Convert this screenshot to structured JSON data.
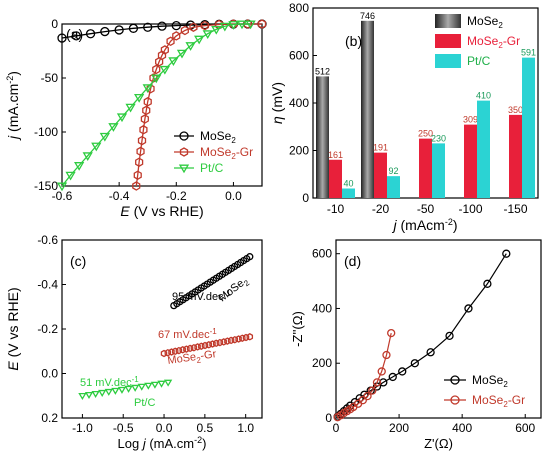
{
  "colors": {
    "black": "#000000",
    "red": "#c0392b",
    "green": "#2ecc40",
    "red_bar": "#e8203a",
    "cyan_bar": "#2bd3d3"
  },
  "chart_data": [
    {
      "type": "line",
      "panel": "(a)",
      "xlabel_main": "E",
      "xlabel_rest": " (V vs RHE)",
      "ylabel_main": "j",
      "ylabel_rest": " (mA.cm",
      "ylabel_sup": "-2",
      "ylabel_end": ")",
      "xlim": [
        -0.6,
        0.1
      ],
      "ylim": [
        -150,
        0
      ],
      "xticks": [
        -0.6,
        -0.4,
        -0.2,
        0.0
      ],
      "xtick_labels": [
        "-0.6",
        "-0.4",
        "-0.2",
        "0.0"
      ],
      "yticks": [
        -150,
        -100,
        -50,
        0
      ],
      "ytick_labels": [
        "-150",
        "-100",
        "-50",
        "0"
      ],
      "legend": "bottom-right",
      "series": [
        {
          "name_main": "MoSe",
          "name_sub": "2",
          "name_rest": "",
          "color": "#000000",
          "marker": "circle",
          "x": [
            -0.6,
            -0.55,
            -0.5,
            -0.45,
            -0.4,
            -0.35,
            -0.3,
            -0.25,
            -0.2,
            -0.15,
            -0.1,
            -0.05,
            0.0,
            0.05,
            0.1
          ],
          "y": [
            -13,
            -11,
            -9,
            -7,
            -5.5,
            -4,
            -3,
            -2,
            -1.5,
            -1,
            -0.6,
            -0.3,
            -0.1,
            0,
            0
          ]
        },
        {
          "name_main": "MoSe",
          "name_sub": "2",
          "name_rest": "-Gr",
          "color": "#c0392b",
          "marker": "hexagon",
          "x": [
            -0.34,
            -0.335,
            -0.33,
            -0.325,
            -0.32,
            -0.315,
            -0.31,
            -0.305,
            -0.3,
            -0.29,
            -0.28,
            -0.27,
            -0.26,
            -0.25,
            -0.24,
            -0.22,
            -0.2,
            -0.17,
            -0.14,
            -0.1,
            -0.05,
            0.0,
            0.05,
            0.1
          ],
          "y": [
            -150,
            -140,
            -128,
            -118,
            -108,
            -98,
            -88,
            -80,
            -72,
            -60,
            -50,
            -42,
            -35,
            -29,
            -24,
            -16,
            -11,
            -6,
            -3,
            -1.5,
            -0.5,
            0,
            0,
            0
          ]
        },
        {
          "name_main": "Pt/C",
          "name_sub": "",
          "name_rest": "",
          "color": "#2ecc40",
          "marker": "triangle-down",
          "x": [
            -0.6,
            -0.57,
            -0.54,
            -0.51,
            -0.48,
            -0.45,
            -0.42,
            -0.39,
            -0.36,
            -0.33,
            -0.3,
            -0.27,
            -0.24,
            -0.21,
            -0.18,
            -0.15,
            -0.12,
            -0.09,
            -0.06,
            -0.03,
            0.0,
            0.03,
            0.06
          ],
          "y": [
            -150,
            -140,
            -131,
            -122,
            -113,
            -104,
            -95,
            -86,
            -77,
            -68,
            -59,
            -50,
            -42,
            -34,
            -27,
            -20,
            -14,
            -9,
            -5,
            -2,
            -0.5,
            0,
            0
          ]
        }
      ]
    },
    {
      "type": "bar",
      "panel": "(b)",
      "xlabel_main": "j",
      "xlabel_rest": " (mAcm",
      "xlabel_sup": "-2",
      "xlabel_end": ")",
      "ylabel_main": "η",
      "ylabel_rest": " (mV)",
      "categories": [
        "-10",
        "-20",
        "-50",
        "-100",
        "-150"
      ],
      "ylim": [
        0,
        800
      ],
      "yticks": [
        0,
        200,
        400,
        600,
        800
      ],
      "ytick_labels": [
        "0",
        "200",
        "400",
        "600",
        "800"
      ],
      "legend": "top-right",
      "series": [
        {
          "name_main": "MoSe",
          "name_sub": "2",
          "name_rest": "",
          "color": "#555555",
          "values": [
            512,
            746,
            null,
            null,
            null
          ],
          "labels": [
            "512",
            "746",
            "",
            "",
            ""
          ]
        },
        {
          "name_main": "MoSe",
          "name_sub": "2",
          "name_rest": "-Gr",
          "color": "#e8203a",
          "values": [
            161,
            191,
            250,
            309,
            350
          ],
          "labels": [
            "161",
            "191",
            "250",
            "309",
            "350"
          ]
        },
        {
          "name_main": "Pt/C",
          "name_sub": "",
          "name_rest": "",
          "color": "#2bd3d3",
          "values": [
            40,
            92,
            230,
            410,
            591
          ],
          "labels": [
            "40",
            "92",
            "230",
            "410",
            "591"
          ]
        }
      ]
    },
    {
      "type": "scatter",
      "panel": "(c)",
      "xlabel_main": "Log ",
      "xlabel_ital": "j",
      "xlabel_rest": " (mA.cm",
      "xlabel_sup": "-2",
      "xlabel_end": ")",
      "ylabel_main": "E",
      "ylabel_rest": " (V vs RHE)",
      "xlim": [
        -1.25,
        1.2
      ],
      "ylim": [
        0.2,
        -0.6
      ],
      "xticks": [
        -1.0,
        -0.5,
        0.0,
        0.5,
        1.0
      ],
      "xtick_labels": [
        "-1.0",
        "-0.5",
        "0.0",
        "0.5",
        "1.0"
      ],
      "yticks": [
        -0.6,
        -0.4,
        -0.2,
        0.0,
        0.2
      ],
      "ytick_labels": [
        "-0.6",
        "-0.4",
        "-0.2",
        "0.0",
        "0.2"
      ],
      "series": [
        {
          "color": "#000000",
          "marker": "circle",
          "x_start": 0.12,
          "x_end": 1.05,
          "y_start": -0.305,
          "y_end": -0.525,
          "n": 26,
          "slope_main": "95 mV.dec",
          "slope_sup": "-1",
          "name_main": "MoSe",
          "name_sub": "2",
          "name_rest": ""
        },
        {
          "color": "#c0392b",
          "marker": "hexagon",
          "x_start": 0.0,
          "x_end": 1.05,
          "y_start": -0.09,
          "y_end": -0.165,
          "n": 24,
          "slope_main": "67 mV.dec",
          "slope_sup": "-1",
          "name_main": "MoSe",
          "name_sub": "2",
          "name_rest": "-Gr"
        },
        {
          "color": "#2ecc40",
          "marker": "triangle-down",
          "x_start": -1.0,
          "x_end": 0.05,
          "y_start": 0.1,
          "y_end": 0.04,
          "n": 14,
          "slope_main": "51 mV.dec",
          "slope_sup": "-1",
          "name_main": "Pt/C",
          "name_sub": "",
          "name_rest": ""
        }
      ]
    },
    {
      "type": "line",
      "panel": "(d)",
      "xlabel": "Z'(Ω)",
      "ylabel": "-Z''(Ω)",
      "xlim": [
        0,
        650
      ],
      "ylim": [
        0,
        650
      ],
      "xticks": [
        0,
        200,
        400,
        600
      ],
      "xtick_labels": [
        "0",
        "200",
        "400",
        "600"
      ],
      "yticks": [
        0,
        200,
        400,
        600
      ],
      "ytick_labels": [
        "0",
        "200",
        "400",
        "600"
      ],
      "legend": "bottom-right",
      "series": [
        {
          "name_main": "MoSe",
          "name_sub": "2",
          "name_rest": "",
          "color": "#000000",
          "marker": "circle",
          "x": [
            5,
            15,
            25,
            35,
            45,
            60,
            75,
            90,
            110,
            130,
            150,
            180,
            210,
            250,
            300,
            360,
            420,
            480,
            540
          ],
          "y": [
            5,
            15,
            25,
            35,
            45,
            58,
            72,
            85,
            100,
            115,
            130,
            150,
            170,
            200,
            240,
            300,
            400,
            490,
            600
          ]
        },
        {
          "name_main": "MoSe",
          "name_sub": "2",
          "name_rest": "-Gr",
          "color": "#c0392b",
          "marker": "circle",
          "x": [
            5,
            15,
            25,
            35,
            45,
            55,
            70,
            85,
            100,
            115,
            130,
            145,
            160,
            175
          ],
          "y": [
            3,
            10,
            18,
            25,
            32,
            40,
            52,
            65,
            80,
            100,
            130,
            170,
            230,
            310
          ]
        }
      ]
    }
  ]
}
